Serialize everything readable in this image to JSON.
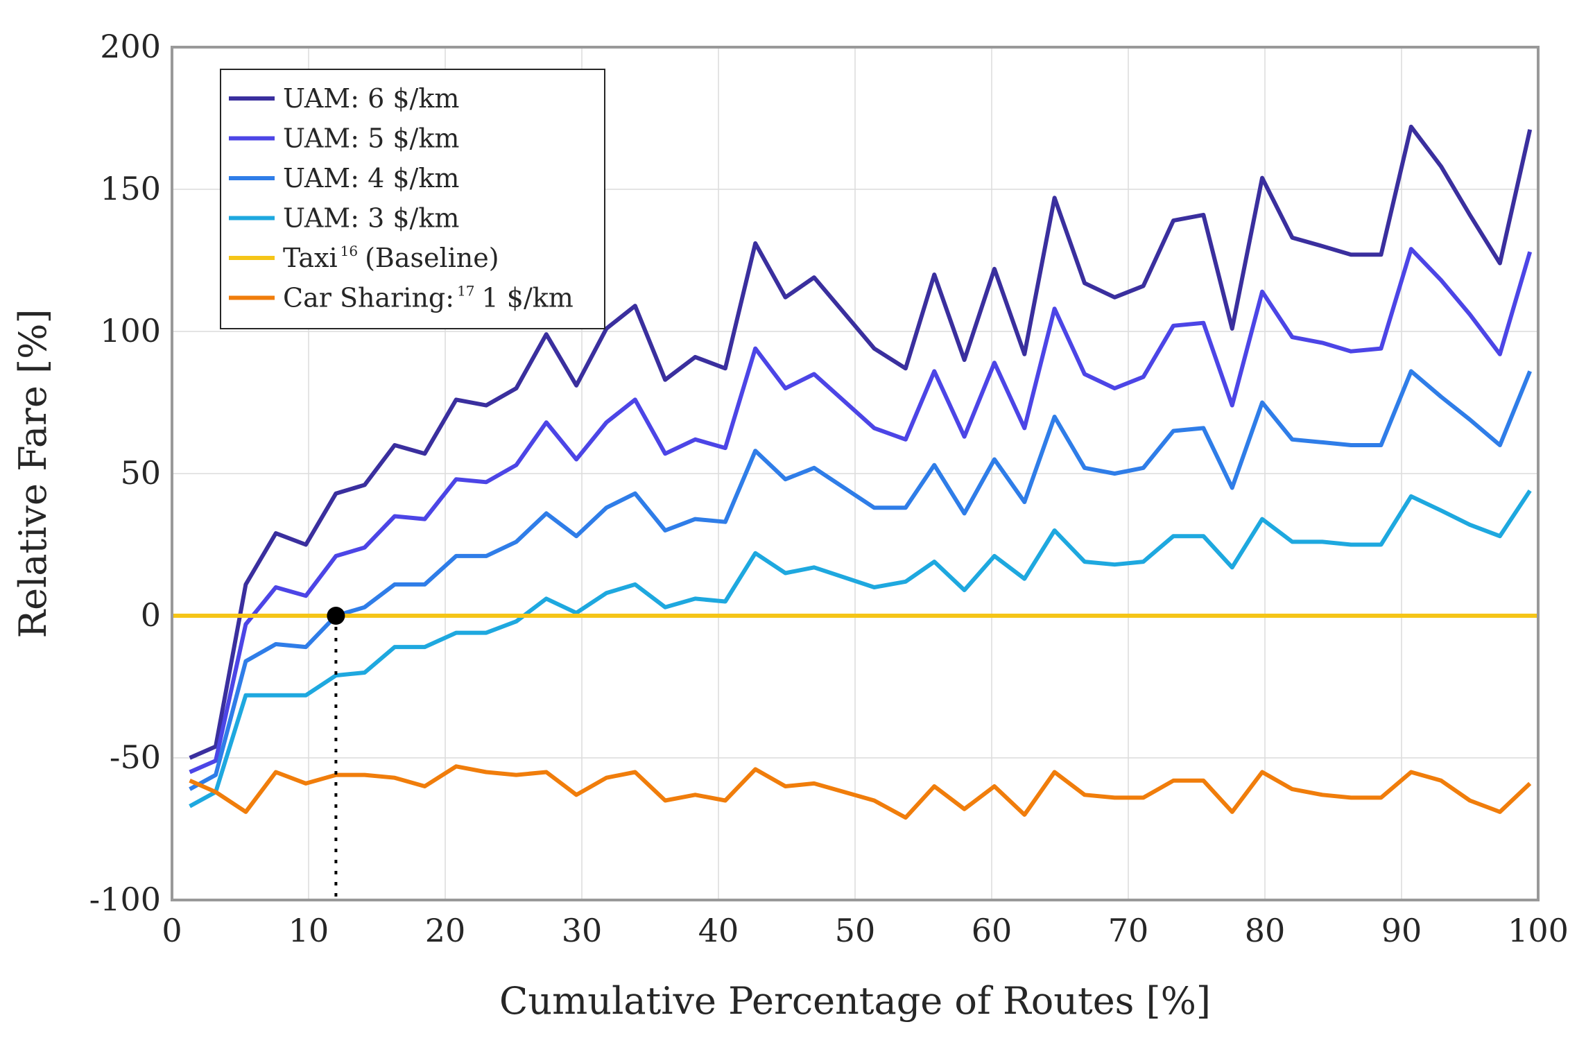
{
  "chart_data": {
    "type": "line",
    "xlabel": "Cumulative Percentage of Routes [%]",
    "ylabel": "Relative Fare [%]",
    "xlim": [
      0,
      100
    ],
    "ylim": [
      -100,
      200
    ],
    "xticks": [
      0,
      10,
      20,
      30,
      40,
      50,
      60,
      70,
      80,
      90,
      100
    ],
    "yticks": [
      -100,
      -50,
      0,
      50,
      100,
      150,
      200
    ],
    "grid": true,
    "legend_position": "top-left",
    "x": [
      1.3,
      3.2,
      5.4,
      7.6,
      9.8,
      12.0,
      14.1,
      16.3,
      18.5,
      20.8,
      23.0,
      25.2,
      27.4,
      29.6,
      31.8,
      33.9,
      36.1,
      38.3,
      40.5,
      42.7,
      44.9,
      47.0,
      51.4,
      53.7,
      55.8,
      58.0,
      60.2,
      62.4,
      64.6,
      66.8,
      69.0,
      71.1,
      73.3,
      75.5,
      77.6,
      79.8,
      82.0,
      84.2,
      86.3,
      88.5,
      90.7,
      92.9,
      95.0,
      97.2,
      99.4
    ],
    "series": [
      {
        "name": "UAM: 6 $/km",
        "color": "#3a2f9e",
        "values": [
          -50,
          -46,
          11,
          29,
          25,
          43,
          46,
          60,
          57,
          76,
          74,
          80,
          99,
          81,
          101,
          109,
          83,
          91,
          87,
          131,
          112,
          119,
          94,
          87,
          120,
          90,
          122,
          92,
          147,
          117,
          112,
          116,
          139,
          141,
          101,
          154,
          133,
          130,
          127,
          127,
          172,
          158,
          141,
          124,
          171
        ]
      },
      {
        "name": "UAM: 5 $/km",
        "color": "#4c45e6",
        "values": [
          -55,
          -51,
          -3,
          10,
          7,
          21,
          24,
          35,
          34,
          48,
          47,
          53,
          68,
          55,
          68,
          76,
          57,
          62,
          59,
          94,
          80,
          85,
          66,
          62,
          86,
          63,
          89,
          66,
          108,
          85,
          80,
          84,
          102,
          103,
          74,
          114,
          98,
          96,
          93,
          94,
          129,
          118,
          106,
          92,
          128
        ]
      },
      {
        "name": "UAM: 4 $/km",
        "color": "#2f7de8",
        "values": [
          -61,
          -56,
          -16,
          -10,
          -11,
          0,
          3,
          11,
          11,
          21,
          21,
          26,
          36,
          28,
          38,
          43,
          30,
          34,
          33,
          58,
          48,
          52,
          38,
          38,
          53,
          36,
          55,
          40,
          70,
          52,
          50,
          52,
          65,
          66,
          45,
          75,
          62,
          61,
          60,
          60,
          86,
          77,
          69,
          60,
          86
        ]
      },
      {
        "name": "UAM: 3 $/km",
        "color": "#1ea8df",
        "values": [
          -67,
          -62,
          -28,
          -28,
          -28,
          -21,
          -20,
          -11,
          -11,
          -6,
          -6,
          -2,
          6,
          1,
          8,
          11,
          3,
          6,
          5,
          22,
          15,
          17,
          10,
          12,
          19,
          9,
          21,
          13,
          30,
          19,
          18,
          19,
          28,
          28,
          17,
          34,
          26,
          26,
          25,
          25,
          42,
          37,
          32,
          28,
          44
        ]
      },
      {
        "name": "Taxi",
        "name_superscript": "16",
        "name_suffix": "(Baseline)",
        "color": "#f5c518",
        "values": [
          0,
          0,
          0,
          0,
          0,
          0,
          0,
          0,
          0,
          0,
          0,
          0,
          0,
          0,
          0,
          0,
          0,
          0,
          0,
          0,
          0,
          0,
          0,
          0,
          0,
          0,
          0,
          0,
          0,
          0,
          0,
          0,
          0,
          0,
          0,
          0,
          0,
          0,
          0,
          0,
          0,
          0,
          0,
          0,
          0
        ]
      },
      {
        "name": "Car Sharing:",
        "name_superscript": "17",
        "name_suffix": "1 $/km",
        "color": "#f07d0b",
        "values": [
          -58,
          -62,
          -69,
          -55,
          -59,
          -56,
          -56,
          -57,
          -60,
          -53,
          -55,
          -56,
          -55,
          -63,
          -57,
          -55,
          -65,
          -63,
          -65,
          -54,
          -60,
          -59,
          -65,
          -71,
          -60,
          -68,
          -60,
          -70,
          -55,
          -63,
          -64,
          -64,
          -58,
          -58,
          -69,
          -55,
          -61,
          -63,
          -64,
          -64,
          -55,
          -58,
          -65,
          -69,
          -59
        ]
      }
    ],
    "annotation": {
      "x": 12.0,
      "y": 0,
      "marker": "filled-circle",
      "dropline": "dotted-vertical"
    }
  }
}
